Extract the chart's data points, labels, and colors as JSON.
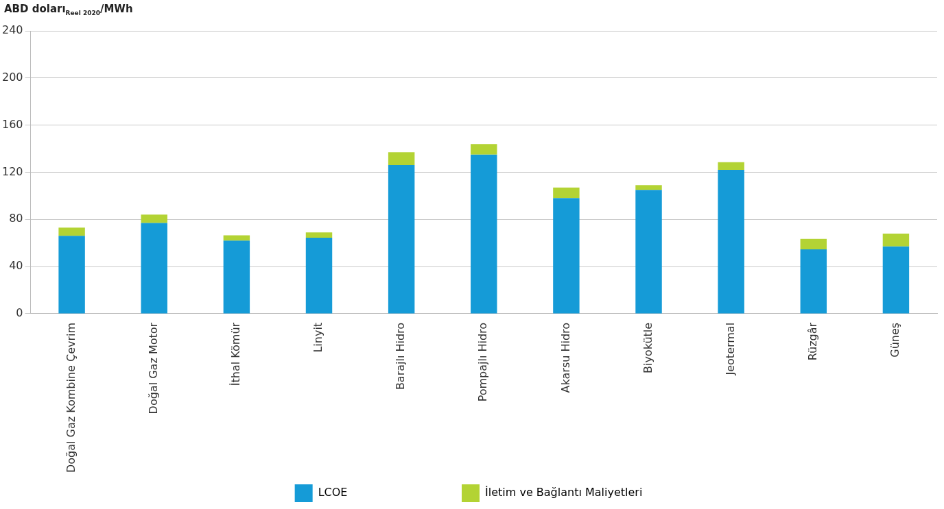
{
  "chart_data": {
    "type": "bar",
    "stacked": true,
    "ylabel": "ABD doları$_{Reel 2020}$/MWh",
    "categories": [
      "Doğal Gaz Kombine Çevrim",
      "Doğal Gaz Motor",
      "İthal Kömür",
      "Linyit",
      "Barajlı Hidro",
      "Pompajlı Hidro",
      "Akarsu Hidro",
      "Biyokütle",
      "Jeotermal",
      "Rüzgâr",
      "Güneş"
    ],
    "series": [
      {
        "name": "LCOE",
        "color": "#159bd7",
        "values": [
          66,
          77,
          62,
          64.5,
          126,
          135,
          98,
          105,
          122,
          54.5,
          57
        ]
      },
      {
        "name": "İletim ve Bağlantı Maliyetleri",
        "color": "#b3d334",
        "values": [
          7,
          7,
          4.5,
          4.5,
          11,
          9,
          9,
          4,
          6.5,
          9,
          11
        ]
      }
    ],
    "ylim": [
      0,
      240
    ],
    "yticks": [
      0,
      40,
      80,
      120,
      160,
      200,
      240
    ],
    "grid": "y",
    "legend": "bottom"
  }
}
